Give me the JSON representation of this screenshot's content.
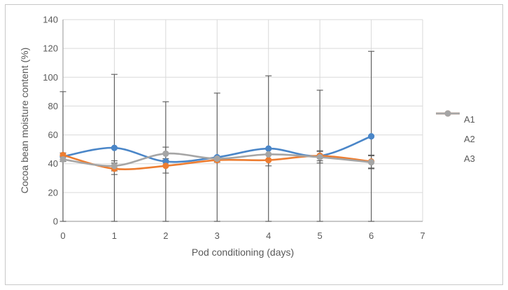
{
  "chart_data": {
    "type": "line",
    "title": "",
    "xlabel": "Pod conditioning (days)",
    "ylabel": "Cocoa bean moisture content (%)",
    "x": [
      0,
      1,
      2,
      3,
      4,
      5,
      6
    ],
    "xticks": [
      0,
      1,
      2,
      3,
      4,
      5,
      6,
      7
    ],
    "yticks": [
      0,
      20,
      40,
      60,
      80,
      100,
      120,
      140
    ],
    "xlim": [
      0,
      7
    ],
    "ylim": [
      0,
      140
    ],
    "grid": true,
    "line_style": "smooth",
    "legend_position": "right",
    "series": [
      {
        "name": "A1",
        "color": "#4A86C8",
        "values": [
          45,
          51,
          41.5,
          44.5,
          50.5,
          45.5,
          59
        ],
        "error_plus": [
          45,
          51,
          41.5,
          44.5,
          50.5,
          45.5,
          59
        ],
        "error_minus": [
          45,
          51,
          41.5,
          44.5,
          50.5,
          45.5,
          59
        ]
      },
      {
        "name": "A2",
        "color": "#ED7D31",
        "values": [
          46,
          36.5,
          38.5,
          42.5,
          42.5,
          45.5,
          41.5
        ],
        "error_plus": [
          1.5,
          4,
          5,
          1.5,
          4,
          3.5,
          4.5
        ],
        "error_minus": [
          1.5,
          4,
          5,
          1.5,
          4,
          3.5,
          4.5
        ]
      },
      {
        "name": "A3",
        "color": "#A5A5A5",
        "values": [
          43,
          38.5,
          47,
          43.5,
          46.5,
          44.5,
          41
        ],
        "error_plus": [
          1.5,
          3.5,
          4.5,
          1.5,
          3.5,
          4,
          4.5
        ],
        "error_minus": [
          1.5,
          3.5,
          4.5,
          1.5,
          3.5,
          4,
          4.5
        ]
      }
    ],
    "colors": {
      "grid": "#D9D9D9",
      "axis": "#A6A6A6",
      "error_bar": "#595959",
      "tick_label": "#595959",
      "axis_title": "#595959",
      "frame_border": "#C8C8C8",
      "background": "#FFFFFF"
    }
  }
}
